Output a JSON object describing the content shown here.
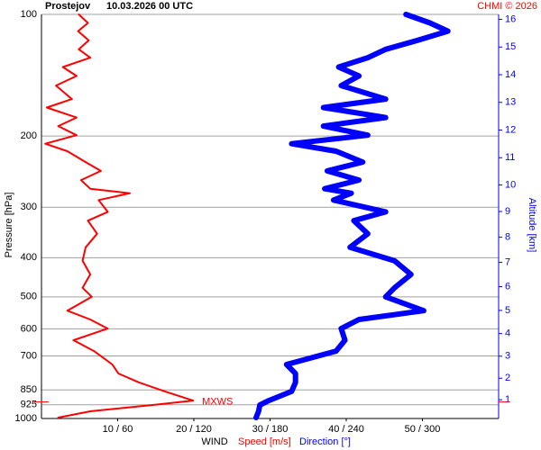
{
  "chart_data": {
    "type": "line",
    "title": "Prostejov",
    "subtitle": "10.03.2026 00 UTC",
    "credit": "CHMI © 2026",
    "y_label": "Pressure [hPa]",
    "y2_label": "Altitude [km]",
    "x_label": "WIND",
    "log_y": true,
    "ylim": [
      1000,
      100
    ],
    "yticks": [
      100,
      200,
      300,
      400,
      500,
      600,
      700,
      850,
      925,
      1000
    ],
    "y2ticks": [
      1,
      2,
      3,
      4,
      5,
      6,
      7,
      8,
      9,
      10,
      11,
      12,
      13,
      14,
      15,
      16
    ],
    "y2_color": "#0000ff",
    "xlim": [
      0,
      60
    ],
    "x2lim": [
      0,
      360
    ],
    "xticks": [
      {
        "value": 10,
        "label": "10 / 60"
      },
      {
        "value": 20,
        "label": "20 / 120"
      },
      {
        "value": 30,
        "label": "30 / 180"
      },
      {
        "value": 40,
        "label": "40 / 240"
      },
      {
        "value": 50,
        "label": "50 / 300"
      }
    ],
    "grid": true,
    "y": [
      100,
      105,
      110,
      116,
      122,
      128,
      135,
      142,
      150,
      162,
      170,
      180,
      189,
      199,
      209,
      218,
      232,
      244,
      257,
      270,
      277,
      288,
      308,
      324,
      349,
      377,
      407,
      440,
      475,
      500,
      541,
      569,
      599,
      640,
      681,
      735,
      774,
      814,
      857,
      903,
      926,
      960,
      995
    ],
    "series": [
      {
        "name": "Speed [m/s]",
        "color": "#ff0000",
        "width": 2,
        "values": [
          4.9,
          6.1,
          4.8,
          6.2,
          4.9,
          6.4,
          2.8,
          4.6,
          1.9,
          4.0,
          0.7,
          4.6,
          2.2,
          4.6,
          0.5,
          3.4,
          5.8,
          7.8,
          5.2,
          6.4,
          11.6,
          7.5,
          8.7,
          6.1,
          7.3,
          5.8,
          5.4,
          6.4,
          5.4,
          6.6,
          3.4,
          6.4,
          8.7,
          4.2,
          6.9,
          9.3,
          10.1,
          12.8,
          16.2,
          19.9,
          14.6,
          6.4,
          2.2
        ]
      },
      {
        "name": "Direction [°]",
        "color": "#0000ff",
        "width": 6,
        "axis": "x2",
        "values": [
          287,
          306,
          320,
          296,
          271,
          257,
          234,
          250,
          236,
          271,
          222,
          271,
          222,
          257,
          197,
          232,
          253,
          225,
          250,
          223,
          244,
          230,
          271,
          246,
          257,
          243,
          278,
          291,
          278,
          271,
          301,
          250,
          236,
          239,
          232,
          193,
          200,
          200,
          197,
          179,
          172,
          171,
          169
        ]
      }
    ],
    "annotation": {
      "text": "MXWS",
      "pressure": 910,
      "color": "#ff0000"
    }
  }
}
